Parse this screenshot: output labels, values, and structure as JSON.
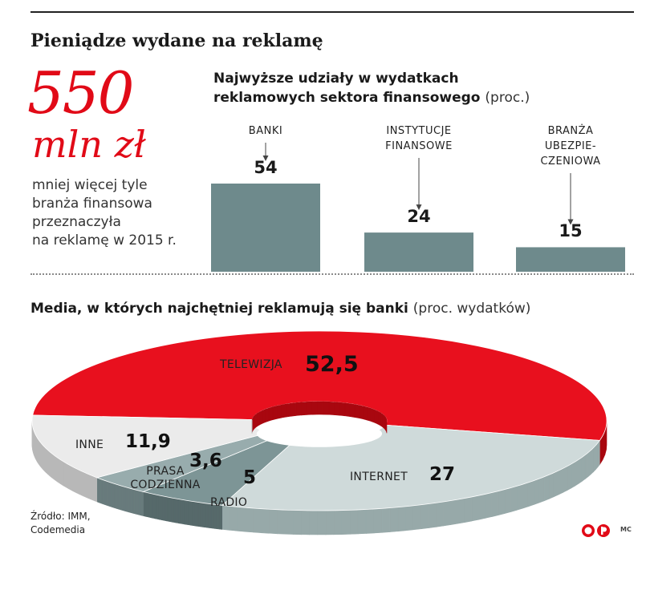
{
  "title": "Pieniądze wydane na reklamę",
  "highlight": {
    "number": "550",
    "unit": "mln zł",
    "description_lines": [
      "mniej więcej tyle",
      "branża finansowa",
      "przeznaczyła",
      "na reklamę w 2015 r."
    ]
  },
  "source_lines": [
    "Źródło: IMM,",
    "Codemedia"
  ],
  "credit": "MC",
  "chart_data": [
    {
      "type": "bar",
      "title_lines": [
        "Najwyższe udziały w wydatkach",
        "reklamowych sektora finansowego"
      ],
      "title_unit": "(proc.)",
      "categories": [
        "BANKI",
        "INSTYTUCJE FINANSOWE",
        "BRANŻA UBEZPIECZENIOWA"
      ],
      "category_label_lines": [
        [
          "BANKI"
        ],
        [
          "INSTYTUCJE",
          "FINANSOWE"
        ],
        [
          "BRANŻA",
          "UBEZPIE-",
          "CZENIOWA"
        ]
      ],
      "values": [
        54,
        24,
        15
      ],
      "value_labels": [
        "54",
        "24",
        "15"
      ],
      "ylim": [
        0,
        54
      ],
      "bar_color": "#6e8a8c",
      "grid": false,
      "legend": "none"
    },
    {
      "type": "pie",
      "variant": "3d-donut",
      "title": "Media, w których najchętniej reklamują się banki",
      "title_unit": "(proc. wydatków)",
      "slices": [
        {
          "label": "TELEWIZJA",
          "value": 52.5,
          "value_label": "52,5",
          "color": "#e8101e",
          "side_color": "#a8070f"
        },
        {
          "label": "INTERNET",
          "value": 27,
          "value_label": "27",
          "color": "#cfdada",
          "side_color": "#97a9a9"
        },
        {
          "label": "RADIO",
          "value": 5,
          "value_label": "5",
          "color": "#7d9596",
          "side_color": "#56696a"
        },
        {
          "label": "PRASA CODZIENNA",
          "value": 3.6,
          "value_label": "3,6",
          "label_lines": [
            "PRASA",
            "CODZIENNA"
          ],
          "color": "#98acad",
          "side_color": "#687b7c"
        },
        {
          "label": "INNE",
          "value": 11.9,
          "value_label": "11,9",
          "color": "#ebebeb",
          "side_color": "#b8b8b8"
        }
      ],
      "legend": "none"
    }
  ]
}
